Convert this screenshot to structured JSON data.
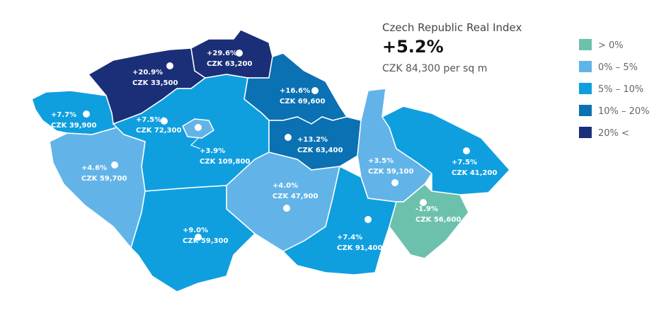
{
  "header": {
    "title": "Czech Republic Real Index",
    "value": "+5.2%",
    "subtitle": "CZK 84,300 per sq m"
  },
  "legend": [
    {
      "label": "> 0%",
      "color": "#6cc1ad"
    },
    {
      "label": "0% – 5%",
      "color": "#62b4e8"
    },
    {
      "label": "5% – 10%",
      "color": "#0f9fdf"
    },
    {
      "label": "10% – 20%",
      "color": "#0a71b3"
    },
    {
      "label": "20% <",
      "color": "#1b2f78"
    }
  ],
  "regions": [
    {
      "change": "+7.7%",
      "price": "CZK 39,900",
      "color": "#0f9fdf"
    },
    {
      "change": "+20.9%",
      "price": "CZK 33,500",
      "color": "#1b2f78"
    },
    {
      "change": "+29.6%",
      "price": "CZK 63,200",
      "color": "#1b2f78"
    },
    {
      "change": "+16.6%",
      "price": "CZK 69,600",
      "color": "#0a71b3"
    },
    {
      "change": "+7.5%*",
      "price": "CZK 72,300",
      "color": "#0f9fdf"
    },
    {
      "change": "+3.9%",
      "price": "CZK 109,800",
      "color": "#62b4e8"
    },
    {
      "change": "+13.2%",
      "price": "CZK 63,400",
      "color": "#0a71b3"
    },
    {
      "change": "+4.6%",
      "price": "CZK 59,700",
      "color": "#62b4e8"
    },
    {
      "change": "+3.5%",
      "price": "CZK 59,100",
      "color": "#62b4e8"
    },
    {
      "change": "+7.5%",
      "price": "CZK 41,200",
      "color": "#0f9fdf"
    },
    {
      "change": "+4.0%",
      "price": "CZK 47,900",
      "color": "#62b4e8"
    },
    {
      "change": "+9.0%",
      "price": "CZK 59,300",
      "color": "#0f9fdf"
    },
    {
      "change": "+7.4%",
      "price": "CZK 91,400",
      "color": "#0f9fdf"
    },
    {
      "change": "-1.9%",
      "price": "CZK 56,600",
      "color": "#6cc1ad"
    }
  ]
}
